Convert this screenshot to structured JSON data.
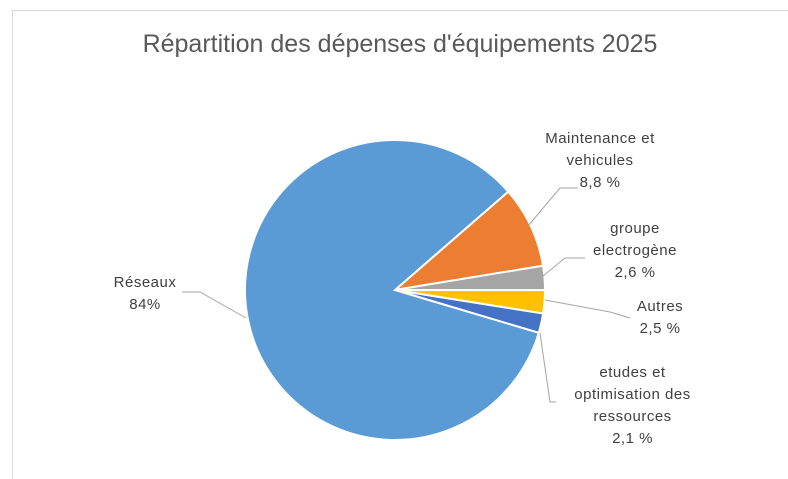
{
  "chart_data": {
    "type": "pie",
    "title": "Répartition des dépenses d'équipements 2025",
    "categories": [
      "Maintenance et vehicules",
      "groupe electrogène",
      "Autres",
      "etudes et optimisation des ressources",
      "Réseaux"
    ],
    "values": [
      8.8,
      2.6,
      2.5,
      2.1,
      84
    ],
    "value_labels": [
      "8,8 %",
      "2,6 %",
      "2,5 %",
      "2,1 %",
      "84%"
    ],
    "colors": [
      "#ed7d31",
      "#a5a5a5",
      "#ffc000",
      "#4472c4",
      "#5b9bd5"
    ]
  }
}
